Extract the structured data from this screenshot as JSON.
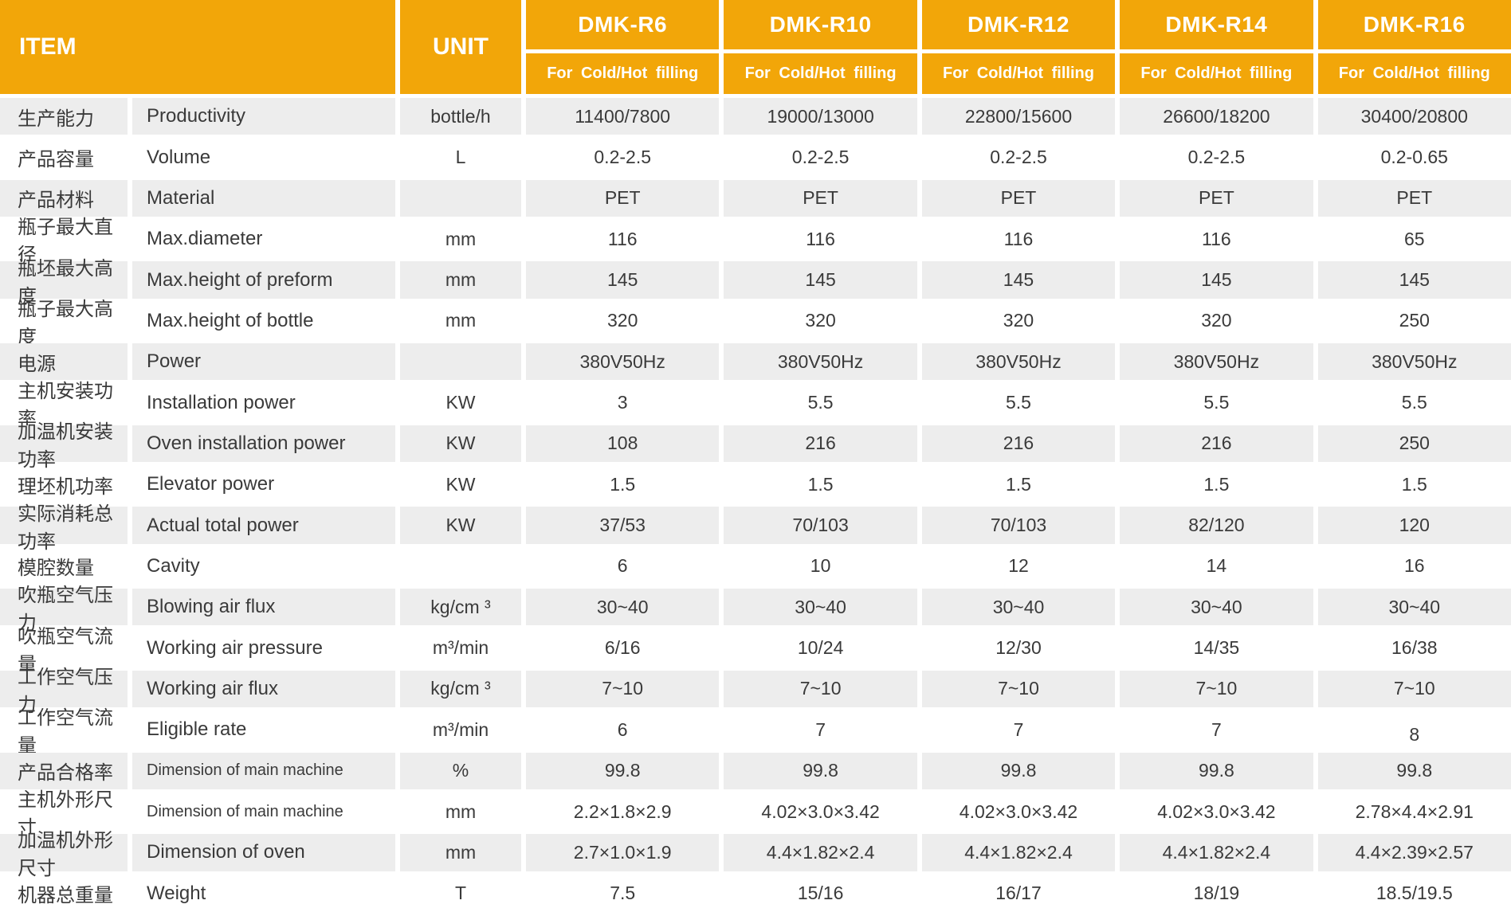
{
  "header": {
    "item_label": "ITEM",
    "unit_label": "UNIT",
    "models": [
      "DMK-R6",
      "DMK-R10",
      "DMK-R12",
      "DMK-R14",
      "DMK-R16"
    ],
    "subtitle": "For Cold/Hot filling"
  },
  "colors": {
    "header_orange": "#f2a609",
    "row_gray": "#ededed",
    "header_text": "#ffffff",
    "body_text": "#3a3a3a"
  },
  "rows": [
    {
      "cn": "生产能力",
      "en": "Productivity",
      "unit": "bottle/h",
      "values": [
        "11400/7800",
        "19000/13000",
        "22800/15600",
        "26600/18200",
        "30400/20800"
      ]
    },
    {
      "cn": "产品容量",
      "en": "Volume",
      "unit": "L",
      "values": [
        "0.2-2.5",
        "0.2-2.5",
        "0.2-2.5",
        "0.2-2.5",
        "0.2-0.65"
      ]
    },
    {
      "cn": "产品材料",
      "en": "Material",
      "unit": "",
      "values": [
        "PET",
        "PET",
        "PET",
        "PET",
        "PET"
      ]
    },
    {
      "cn": "瓶子最大直径",
      "en": "Max.diameter",
      "unit": "mm",
      "values": [
        "116",
        "116",
        "116",
        "116",
        "65"
      ]
    },
    {
      "cn": "瓶坯最大高度",
      "en": "Max.height of preform",
      "unit": "mm",
      "values": [
        "145",
        "145",
        "145",
        "145",
        "145"
      ]
    },
    {
      "cn": "瓶子最大高度",
      "en": "Max.height of bottle",
      "unit": "mm",
      "values": [
        "320",
        "320",
        "320",
        "320",
        "250"
      ]
    },
    {
      "cn": "电源",
      "en": "Power",
      "unit": "",
      "values": [
        "380V50Hz",
        "380V50Hz",
        "380V50Hz",
        "380V50Hz",
        "380V50Hz"
      ]
    },
    {
      "cn": "主机安装功率",
      "en": "Installation power",
      "unit": "KW",
      "values": [
        "3",
        "5.5",
        "5.5",
        "5.5",
        "5.5"
      ]
    },
    {
      "cn": "加温机安装功率",
      "en": "Oven installation power",
      "unit": "KW",
      "values": [
        "108",
        "216",
        "216",
        "216",
        "250"
      ]
    },
    {
      "cn": "理坯机功率",
      "en": "Elevator power",
      "unit": "KW",
      "values": [
        "1.5",
        "1.5",
        "1.5",
        "1.5",
        "1.5"
      ]
    },
    {
      "cn": "实际消耗总功率",
      "en": "Actual total power",
      "unit": "KW",
      "values": [
        "37/53",
        "70/103",
        "70/103",
        "82/120",
        "120"
      ]
    },
    {
      "cn": "模腔数量",
      "en": "Cavity",
      "unit": "",
      "values": [
        "6",
        "10",
        "12",
        "14",
        "16"
      ]
    },
    {
      "cn": "吹瓶空气压力",
      "en": "Blowing air flux",
      "unit": "kg/cm ³",
      "values": [
        "30~40",
        "30~40",
        "30~40",
        "30~40",
        "30~40"
      ]
    },
    {
      "cn": "吹瓶空气流量",
      "en": "Working air pressure",
      "unit": "m³/min",
      "values": [
        "6/16",
        "10/24",
        "12/30",
        "14/35",
        "16/38"
      ]
    },
    {
      "cn": "工作空气压力",
      "en": "Working air flux",
      "unit": "kg/cm ³",
      "values": [
        "7~10",
        "7~10",
        "7~10",
        "7~10",
        "7~10"
      ]
    },
    {
      "cn": "工作空气流量",
      "en": "Eligible rate",
      "unit": "m³/min",
      "values": [
        "6",
        "7",
        "7",
        "7",
        "8"
      ]
    },
    {
      "cn": "产品合格率",
      "en": "Dimension of main machine",
      "unit": "%",
      "values": [
        "99.8",
        "99.8",
        "99.8",
        "99.8",
        "99.8"
      ]
    },
    {
      "cn": "主机外形尺寸",
      "en": "Dimension of main machine",
      "unit": "mm",
      "values": [
        "2.2×1.8×2.9",
        "4.02×3.0×3.42",
        "4.02×3.0×3.42",
        "4.02×3.0×3.42",
        "2.78×4.4×2.91"
      ]
    },
    {
      "cn": "加温机外形尺寸",
      "en": "Dimension of oven",
      "unit": "mm",
      "values": [
        "2.7×1.0×1.9",
        "4.4×1.82×2.4",
        "4.4×1.82×2.4",
        "4.4×1.82×2.4",
        "4.4×2.39×2.57"
      ]
    },
    {
      "cn": "机器总重量",
      "en": "Weight",
      "unit": "T",
      "values": [
        "7.5",
        "15/16",
        "16/17",
        "18/19",
        "18.5/19.5"
      ]
    }
  ]
}
